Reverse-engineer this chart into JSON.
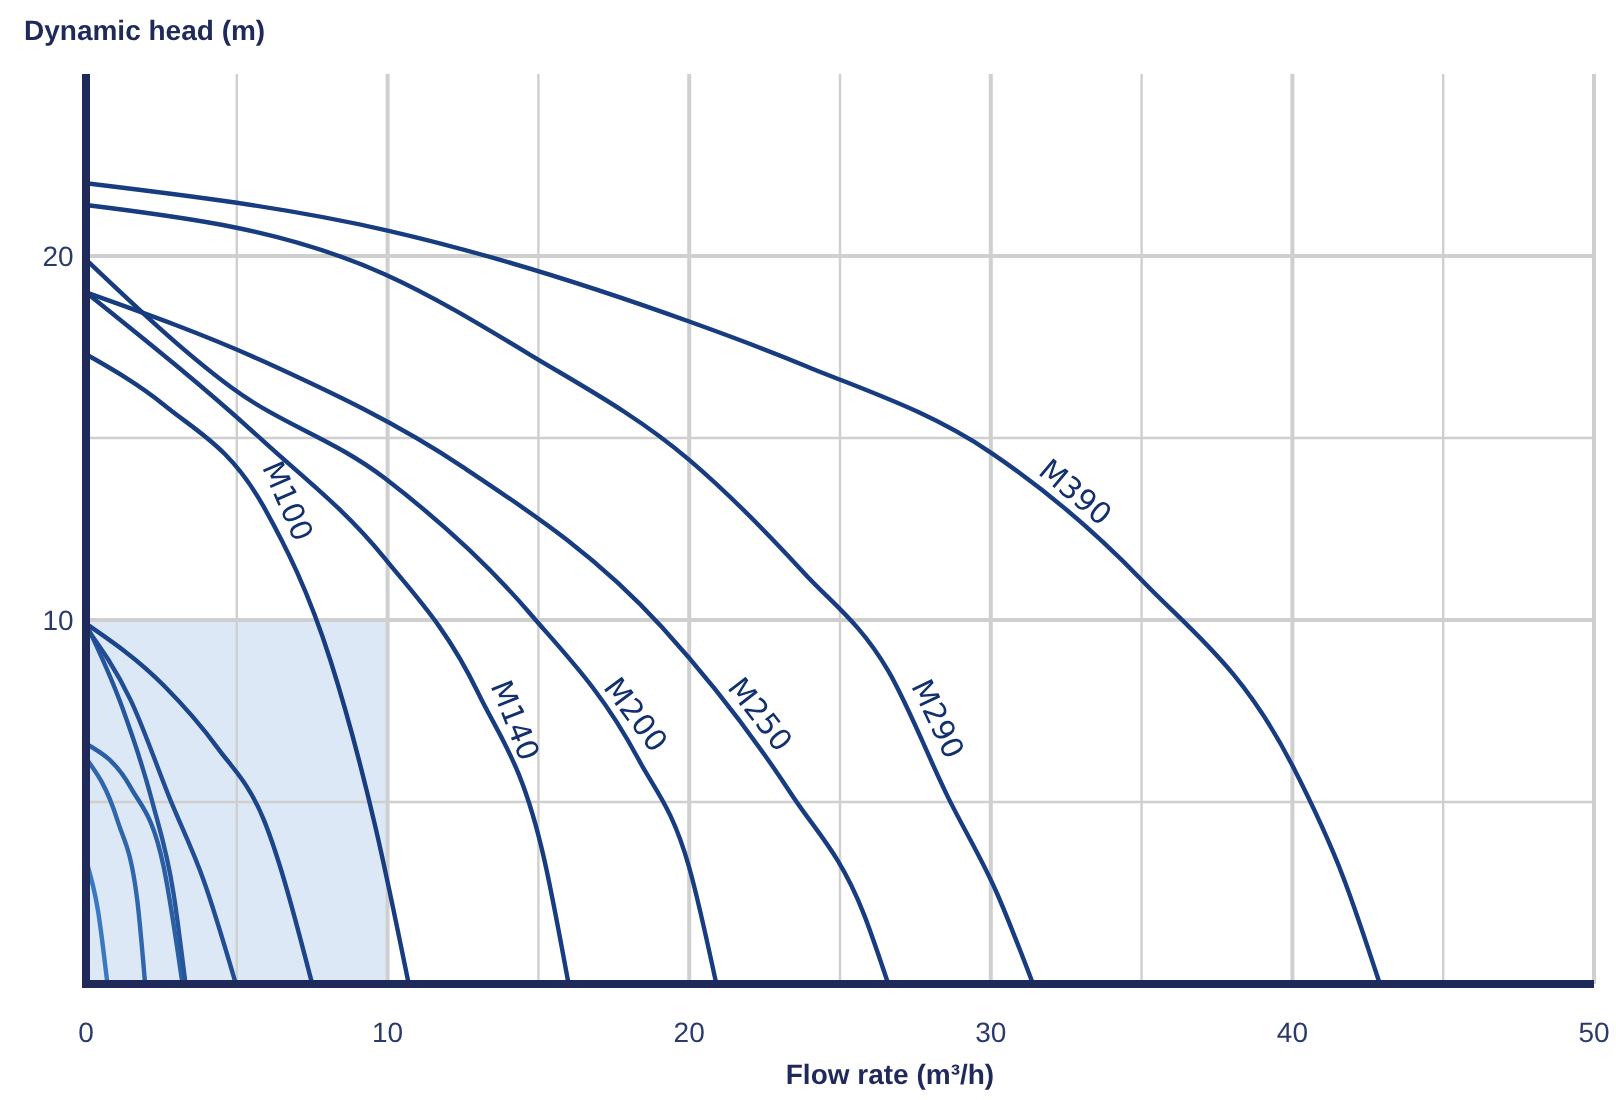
{
  "chart_data": {
    "type": "line",
    "xlabel": "Flow rate (m³/h)",
    "ylabel": "Dynamic head (m)",
    "xlim": [
      0,
      50
    ],
    "ylim": [
      0,
      25
    ],
    "xticks": [
      0,
      {
        "value": 5,
        "label": null
      },
      10,
      {
        "value": 15,
        "label": null
      },
      20,
      {
        "value": 25,
        "label": null
      },
      30,
      {
        "value": 35,
        "label": null
      },
      40,
      {
        "value": 45,
        "label": null
      },
      50
    ],
    "yticks": [
      {
        "value": 5,
        "label": null
      },
      10,
      {
        "value": 15,
        "label": null
      },
      20
    ],
    "grid": true,
    "marker": "none",
    "line_style": "solid",
    "series": [
      {
        "type": "area",
        "color": "#dce8f5",
        "x": [
          0,
          10
        ],
        "values": [
          10,
          10
        ]
      },
      {
        "color": "#3a78bf",
        "x": [
          0,
          0.4,
          0.71
        ],
        "values": [
          3.4,
          2.0,
          0
        ]
      },
      {
        "color": "#2f67ad",
        "x": [
          0,
          1.04,
          1.7,
          1.96
        ],
        "values": [
          6.2,
          4.5,
          2.3,
          0
        ]
      },
      {
        "color": "#2a5fa5",
        "x": [
          0,
          1.48,
          2.58,
          3.2
        ],
        "values": [
          6.6,
          5.4,
          3.2,
          0
        ]
      },
      {
        "color": "#25569c",
        "x": [
          0,
          1.2,
          2.2,
          2.9,
          3.3
        ],
        "values": [
          9.9,
          7.6,
          5.0,
          2.5,
          0
        ]
      },
      {
        "color": "#204d93",
        "x": [
          0,
          1.48,
          2.8,
          3.9,
          4.97
        ],
        "values": [
          9.8,
          7.8,
          5.05,
          2.85,
          0
        ]
      },
      {
        "color": "#1b448a",
        "x": [
          0,
          2.58,
          4.35,
          5.9,
          7.5
        ],
        "values": [
          9.9,
          8.2,
          6.5,
          4.5,
          0
        ]
      },
      {
        "name": "M100",
        "color": "#173c80",
        "x": [
          0,
          2.6,
          5.9,
          8.1,
          9.6,
          10.7
        ],
        "values": [
          17.3,
          15.9,
          13.1,
          8.9,
          4.3,
          0
        ]
      },
      {
        "name": "M140",
        "color": "#173c80",
        "x": [
          0,
          5.9,
          9.9,
          13,
          15.2,
          16.0
        ],
        "values": [
          19.0,
          14.9,
          11.7,
          8.0,
          3.4,
          0
        ]
      },
      {
        "name": "M200",
        "color": "#173c80",
        "x": [
          0,
          4.8,
          9.9,
          14.7,
          18.3,
          20.0,
          20.9
        ],
        "values": [
          19.9,
          16.4,
          13.9,
          10.2,
          6.2,
          3.2,
          0
        ]
      },
      {
        "name": "M250",
        "color": "#173c80",
        "x": [
          0,
          5.9,
          12.5,
          19.1,
          23.4,
          25.8,
          26.6
        ],
        "values": [
          19.0,
          17.1,
          14.2,
          9.8,
          5.2,
          1.9,
          0
        ]
      },
      {
        "name": "M290",
        "color": "#173c80",
        "x": [
          0,
          9.9,
          14.7,
          20.0,
          23.8,
          26.6,
          28.6,
          30.2,
          31.4
        ],
        "values": [
          21.4,
          19.5,
          17.3,
          14.4,
          11.3,
          8.6,
          5.1,
          2.5,
          0
        ]
      },
      {
        "name": "M390",
        "color": "#173c80",
        "x": [
          0,
          10,
          20,
          23.8,
          30,
          35,
          40,
          41.7,
          42.9
        ],
        "values": [
          22.0,
          20.7,
          18.2,
          17.0,
          14.6,
          11.1,
          6.0,
          2.9,
          0
        ]
      }
    ]
  }
}
